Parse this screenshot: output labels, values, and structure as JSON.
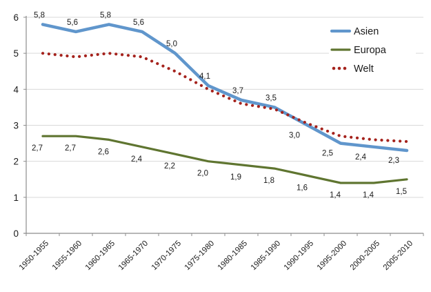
{
  "chart_data": {
    "type": "line",
    "title": "",
    "xlabel": "",
    "ylabel": "",
    "categories": [
      "1950-1955",
      "1955-1960",
      "1960-1965",
      "1965-1970",
      "1970-1975",
      "1975-1980",
      "1980-1985",
      "1985-1990",
      "1990-1995",
      "1995-2000",
      "2000-2005",
      "2005-2010"
    ],
    "y_ticks": [
      0,
      1,
      2,
      3,
      4,
      5,
      6
    ],
    "ylim": [
      0,
      6
    ],
    "grid": true,
    "decimal_separator": ",",
    "legend_position": "top-right",
    "series": [
      {
        "name": "Asien",
        "color": "#6096CC",
        "line_style": "solid",
        "line_width": 4.5,
        "values": [
          5.8,
          5.6,
          5.8,
          5.6,
          5.0,
          4.1,
          3.7,
          3.5,
          3.0,
          2.5,
          2.4,
          2.3
        ],
        "labels": [
          "5,8",
          "5,6",
          "5,8",
          "5,6",
          "5,0",
          "4,1",
          "3,7",
          "3,5",
          "3,0",
          "2,5",
          "2,4",
          "2,3"
        ],
        "label_sides": [
          "above",
          "above",
          "above",
          "above",
          "above",
          "above",
          "above",
          "above",
          "below",
          "below",
          "below",
          "below"
        ],
        "label_offset_above": [
          -5,
          -14
        ],
        "label_offset_below": [
          -19,
          14
        ]
      },
      {
        "name": "Europa",
        "color": "#5F7530",
        "line_style": "solid",
        "line_width": 3.2,
        "values": [
          2.7,
          2.7,
          2.6,
          2.4,
          2.2,
          2.0,
          1.9,
          1.8,
          1.6,
          1.4,
          1.4,
          1.5
        ],
        "labels": [
          "2,7",
          "2,7",
          "2,6",
          "2,4",
          "2,2",
          "2,0",
          "1,9",
          "1,8",
          "1,6",
          "1,4",
          "1,4",
          "1,5"
        ],
        "label_sides": [
          "below",
          "below",
          "below",
          "below",
          "below",
          "below",
          "below",
          "below",
          "below",
          "below",
          "below",
          "below"
        ],
        "label_offset_above": [
          -5,
          -14
        ],
        "label_offset_below": [
          -8,
          17
        ]
      },
      {
        "name": "Welt",
        "color": "#A5231D",
        "line_style": "dotted",
        "line_width": 4.2,
        "values": [
          5.0,
          4.9,
          5.0,
          4.9,
          4.5,
          4.0,
          3.6,
          3.45,
          3.05,
          2.7,
          2.6,
          2.55
        ],
        "labels": [],
        "label_sides": [],
        "label_offset_above": [
          0,
          0
        ],
        "label_offset_below": [
          0,
          0
        ]
      }
    ],
    "legend": [
      {
        "label": "Asien"
      },
      {
        "label": "Europa"
      },
      {
        "label": "Welt"
      }
    ],
    "colors": {
      "axis": "#8C8C8C",
      "grid": "#D9D9D9",
      "text": "#1A1A1A",
      "background": "#FFFFFF"
    }
  }
}
